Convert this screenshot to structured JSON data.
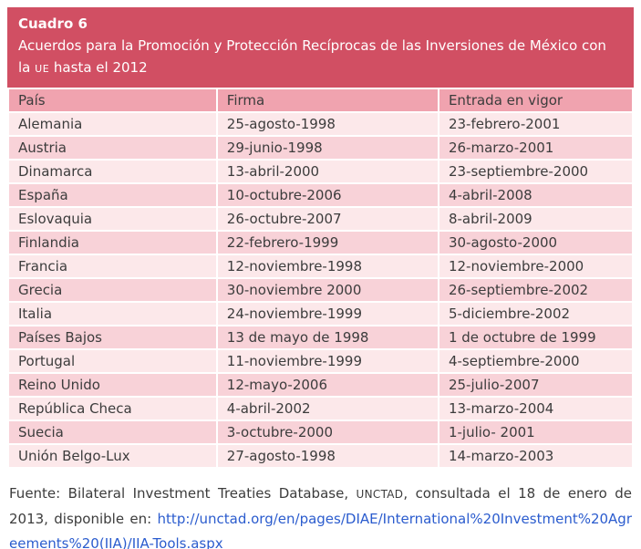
{
  "header": {
    "label": "Cuadro 6",
    "title_before": "Acuerdos para la Promoción y Protección Recíprocas de las Inversiones de México con la ",
    "title_smallcaps": "UE",
    "title_after": " hasta el 2012"
  },
  "table": {
    "columns": [
      "País",
      "Firma",
      "Entrada en vigor"
    ],
    "rows": [
      {
        "pais": "Alemania",
        "firma": "25-agosto-1998",
        "vigor": "23-febrero-2001"
      },
      {
        "pais": "Austria",
        "firma": "29-junio-1998",
        "vigor": "26-marzo-2001"
      },
      {
        "pais": "Dinamarca",
        "firma": "13-abril-2000",
        "vigor": "23-septiembre-2000"
      },
      {
        "pais": "España",
        "firma": "10-octubre-2006",
        "vigor": "4-abril-2008"
      },
      {
        "pais": "Eslovaquia",
        "firma": "26-octubre-2007",
        "vigor": "8-abril-2009"
      },
      {
        "pais": "Finlandia",
        "firma": "22-febrero-1999",
        "vigor": "30-agosto-2000"
      },
      {
        "pais": "Francia",
        "firma": "12-noviembre-1998",
        "vigor": "12-noviembre-2000"
      },
      {
        "pais": "Grecia",
        "firma": "30-noviembre 2000",
        "vigor": "26-septiembre-2002"
      },
      {
        "pais": "Italia",
        "firma": "24-noviembre-1999",
        "vigor": "5-diciembre-2002"
      },
      {
        "pais": "Países Bajos",
        "firma": "13 de mayo de 1998",
        "vigor": "1 de octubre de 1999"
      },
      {
        "pais": "Portugal",
        "firma": "11-noviembre-1999",
        "vigor": "4-septiembre-2000"
      },
      {
        "pais": "Reino Unido",
        "firma": "12-mayo-2006",
        "vigor": "25-julio-2007"
      },
      {
        "pais": "República Checa",
        "firma": "4-abril-2002",
        "vigor": "13-marzo-2004"
      },
      {
        "pais": "Suecia",
        "firma": "3-octubre-2000",
        "vigor": "1-julio- 2001"
      },
      {
        "pais": "Unión Belgo-Lux",
        "firma": "27-agosto-1998",
        "vigor": "14-marzo-2003"
      }
    ]
  },
  "footer": {
    "text_before": "Fuente: Bilateral Investment Treaties Database, ",
    "smallcaps": "UNCTAD",
    "text_middle": ", consultada el 18 de enero de 2013, disponible en: ",
    "link": "http://unctad.org/en/pages/DIAE/International%20Investment%20Agreements%20(IIA)/IIA-Tools.aspx"
  },
  "colors": {
    "band": "#d14f63",
    "column_header": "#f0a3af",
    "row_light": "#fce8ea",
    "row_dark": "#f8d2d8",
    "link": "#2b5cce"
  }
}
